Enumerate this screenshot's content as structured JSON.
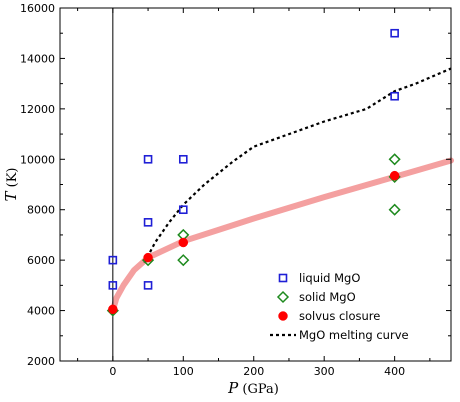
{
  "chart_data": {
    "type": "scatter",
    "xlabel_var": "P",
    "xlabel_unit": "(GPa)",
    "ylabel_var": "T",
    "ylabel_unit": "(K)",
    "xlim": [
      -75,
      480
    ],
    "ylim": [
      2000,
      16000
    ],
    "x_ticks": [
      0,
      100,
      200,
      300,
      400
    ],
    "y_ticks": [
      2000,
      4000,
      6000,
      8000,
      10000,
      12000,
      14000,
      16000
    ],
    "x_tick_labels": [
      "0",
      "100",
      "200",
      "300",
      "400"
    ],
    "y_tick_labels": [
      "2000",
      "4000",
      "6000",
      "8000",
      "10000",
      "12000",
      "14000",
      "16000"
    ],
    "vline_x": 0,
    "legend_position": "lower-right",
    "series": [
      {
        "name": "liquid MgO",
        "marker": "square",
        "color": "#1f1fd6",
        "points": [
          [
            0,
            6000
          ],
          [
            0,
            5000
          ],
          [
            50,
            10000
          ],
          [
            50,
            7500
          ],
          [
            50,
            5000
          ],
          [
            100,
            10000
          ],
          [
            100,
            8000
          ],
          [
            400,
            15000
          ],
          [
            400,
            12500
          ]
        ]
      },
      {
        "name": "solid MgO",
        "marker": "diamond",
        "color": "#1e8a1e",
        "points": [
          [
            0,
            4000
          ],
          [
            50,
            6000
          ],
          [
            100,
            7000
          ],
          [
            100,
            6000
          ],
          [
            400,
            10000
          ],
          [
            400,
            9300
          ],
          [
            400,
            8000
          ]
        ]
      },
      {
        "name": "solvus closure",
        "marker": "circle",
        "color": "#ff0000",
        "points": [
          [
            0,
            4050
          ],
          [
            50,
            6100
          ],
          [
            100,
            6700
          ],
          [
            400,
            9350
          ]
        ]
      },
      {
        "name": "MgO melting curve",
        "marker": "dashed-line",
        "color": "#000000",
        "points": [
          [
            45,
            5900
          ],
          [
            60,
            6700
          ],
          [
            80,
            7500
          ],
          [
            100,
            8200
          ],
          [
            130,
            9000
          ],
          [
            170,
            9900
          ],
          [
            200,
            10500
          ],
          [
            250,
            11000
          ],
          [
            300,
            11500
          ],
          [
            360,
            12000
          ],
          [
            400,
            12700
          ],
          [
            430,
            13000
          ],
          [
            480,
            13600
          ]
        ]
      }
    ],
    "fit_band": {
      "color": "#f4a0a0",
      "points": [
        [
          0,
          4000
        ],
        [
          5,
          4500
        ],
        [
          15,
          5000
        ],
        [
          30,
          5600
        ],
        [
          50,
          6100
        ],
        [
          100,
          6750
        ],
        [
          150,
          7200
        ],
        [
          200,
          7650
        ],
        [
          300,
          8500
        ],
        [
          400,
          9300
        ],
        [
          480,
          9950
        ]
      ]
    }
  }
}
